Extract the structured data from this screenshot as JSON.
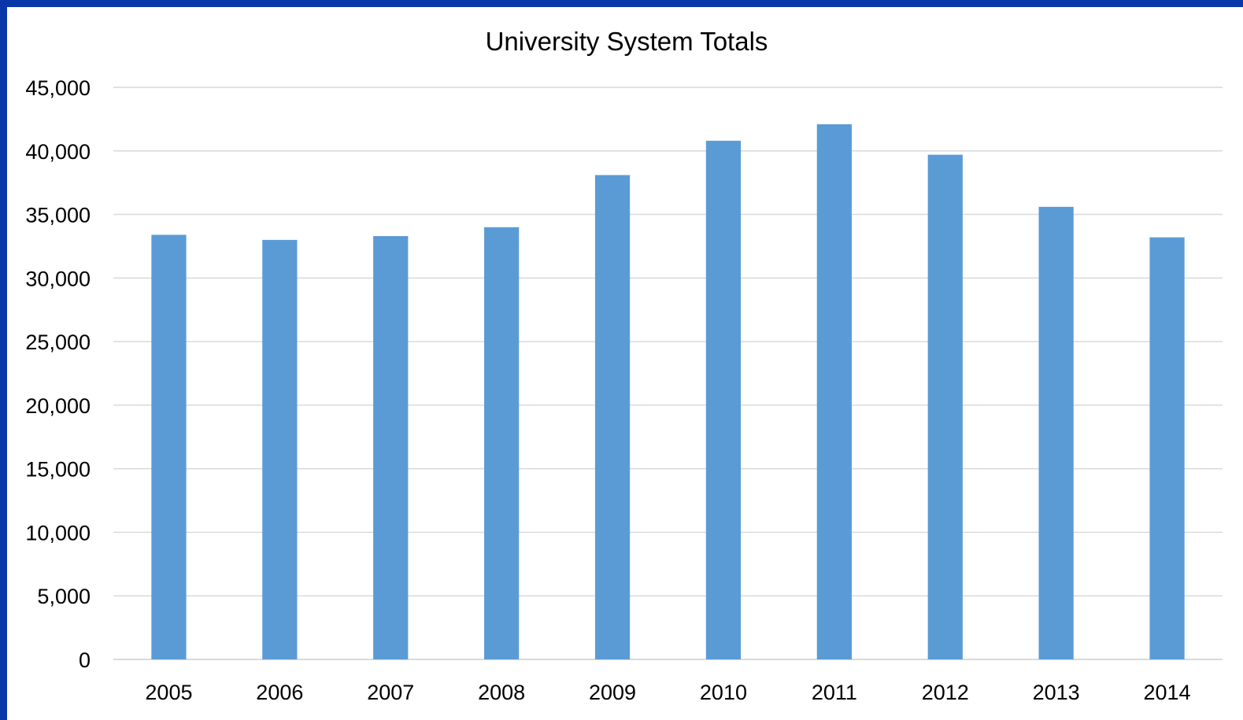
{
  "chart_data": {
    "type": "bar",
    "title": "University System Totals",
    "xlabel": "",
    "ylabel": "",
    "categories": [
      "2005",
      "2006",
      "2007",
      "2008",
      "2009",
      "2010",
      "2011",
      "2012",
      "2013",
      "2014"
    ],
    "values": [
      33400,
      33000,
      33300,
      34000,
      38100,
      40800,
      42100,
      39700,
      35600,
      33200
    ],
    "ylim": [
      0,
      45000
    ],
    "yticks": [
      0,
      5000,
      10000,
      15000,
      20000,
      25000,
      30000,
      35000,
      40000,
      45000
    ],
    "ytick_labels": [
      "0",
      "5,000",
      "10,000",
      "15,000",
      "20,000",
      "25,000",
      "30,000",
      "35,000",
      "40,000",
      "45,000"
    ],
    "grid": true,
    "legend": "none",
    "colors": {
      "bar": "#5b9bd5",
      "grid": "#d9d9d9",
      "frame": "#0a37a8"
    }
  }
}
